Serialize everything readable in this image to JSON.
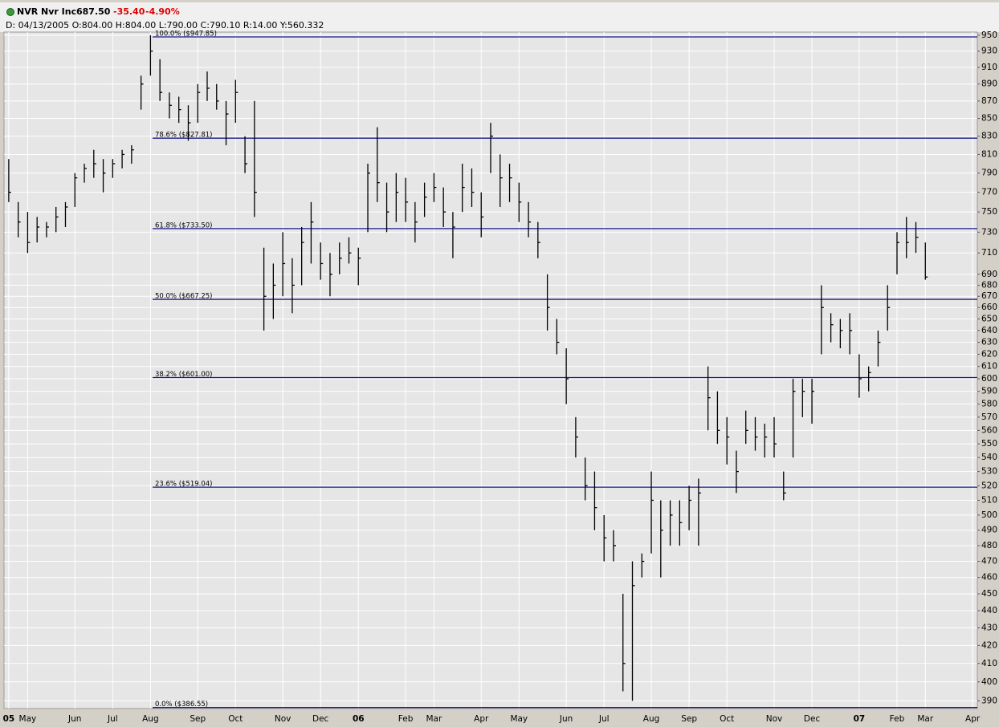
{
  "header": {
    "symbol": "NVR Nvr Inc",
    "last": "687.50",
    "change": "-35.40",
    "change_pct": "-4.90%",
    "info": "D: 04/13/2005 O:804.00 H:804.00 L:790.00 C:790.10 R:14.00 Y:560.332"
  },
  "chart_data": {
    "type": "ohlc",
    "color": "#000000",
    "log_scale": true,
    "grid": true,
    "categories": [
      "05",
      null,
      "May",
      null,
      null,
      null,
      null,
      "Jun",
      null,
      null,
      null,
      "Jul",
      null,
      null,
      null,
      "Aug",
      null,
      null,
      null,
      null,
      "Sep",
      null,
      null,
      null,
      "Oct",
      null,
      null,
      null,
      null,
      "Nov",
      null,
      null,
      null,
      "Dec",
      null,
      null,
      null,
      "06",
      null,
      null,
      null,
      null,
      "Feb",
      null,
      null,
      "Mar",
      null,
      null,
      null,
      null,
      "Apr",
      null,
      null,
      null,
      "May",
      null,
      null,
      null,
      null,
      "Jun",
      null,
      null,
      null,
      "Jul",
      null,
      null,
      null,
      null,
      "Aug",
      null,
      null,
      null,
      "Sep",
      null,
      null,
      null,
      "Oct",
      null,
      null,
      null,
      null,
      "Nov",
      null,
      null,
      null,
      "Dec",
      null,
      null,
      null,
      null,
      "07",
      null,
      null,
      null,
      "Feb",
      null,
      null,
      "Mar",
      null,
      null,
      null,
      null,
      "Apr"
    ],
    "high": [
      805,
      760,
      750,
      745,
      740,
      755,
      760,
      790,
      800,
      815,
      805,
      805,
      815,
      820,
      900,
      950,
      920,
      880,
      875,
      865,
      890,
      905,
      890,
      870,
      895,
      830,
      870,
      715,
      700,
      730,
      705,
      735,
      760,
      720,
      710,
      720,
      725,
      715,
      800,
      840,
      780,
      790,
      785,
      760,
      780,
      790,
      775,
      750,
      800,
      795,
      770,
      845,
      810,
      800,
      780,
      760,
      740,
      690,
      650,
      625,
      570,
      540,
      530,
      500,
      490,
      450,
      470,
      475,
      530,
      510,
      510,
      510,
      520,
      525,
      610,
      590,
      570,
      545,
      575,
      570,
      565,
      570,
      530,
      600,
      600,
      600,
      680,
      655,
      650,
      655,
      620,
      610,
      640,
      680,
      730,
      745,
      740,
      720,
      null,
      null,
      null,
      null,
      null
    ],
    "low": [
      760,
      725,
      710,
      720,
      725,
      730,
      735,
      755,
      780,
      785,
      770,
      785,
      795,
      800,
      860,
      900,
      870,
      850,
      845,
      825,
      845,
      870,
      860,
      820,
      845,
      790,
      745,
      640,
      650,
      670,
      655,
      680,
      700,
      685,
      670,
      690,
      700,
      680,
      730,
      760,
      730,
      740,
      740,
      720,
      745,
      760,
      735,
      705,
      750,
      755,
      725,
      790,
      755,
      760,
      740,
      725,
      705,
      640,
      620,
      580,
      540,
      510,
      490,
      470,
      470,
      395,
      390,
      460,
      475,
      460,
      480,
      480,
      490,
      480,
      560,
      550,
      535,
      515,
      550,
      545,
      540,
      540,
      510,
      540,
      570,
      565,
      620,
      630,
      625,
      620,
      585,
      590,
      610,
      640,
      690,
      705,
      710,
      685,
      null,
      null,
      null,
      null,
      null
    ],
    "close": [
      770,
      740,
      720,
      735,
      735,
      745,
      755,
      785,
      795,
      800,
      790,
      800,
      810,
      815,
      890,
      930,
      880,
      865,
      860,
      845,
      880,
      885,
      870,
      855,
      880,
      800,
      770,
      670,
      680,
      700,
      680,
      720,
      740,
      700,
      690,
      705,
      710,
      705,
      790,
      780,
      750,
      770,
      760,
      740,
      765,
      775,
      750,
      735,
      775,
      770,
      745,
      830,
      785,
      785,
      760,
      740,
      720,
      660,
      630,
      600,
      555,
      520,
      505,
      485,
      480,
      410,
      455,
      470,
      510,
      490,
      500,
      495,
      510,
      515,
      585,
      560,
      555,
      530,
      560,
      555,
      555,
      550,
      515,
      590,
      590,
      590,
      660,
      645,
      640,
      640,
      600,
      605,
      630,
      660,
      720,
      720,
      725,
      687.5,
      null,
      null,
      null,
      null,
      null
    ],
    "ylim": [
      386,
      954
    ],
    "yticks": [
      950,
      930,
      910,
      890,
      870,
      850,
      830,
      810,
      790,
      770,
      750,
      730,
      710,
      690,
      680,
      670,
      660,
      650,
      640,
      630,
      620,
      610,
      600,
      590,
      580,
      570,
      560,
      550,
      540,
      530,
      520,
      510,
      500,
      490,
      480,
      470,
      460,
      450,
      440,
      430,
      420,
      410,
      400,
      390
    ],
    "levels_color": "#1a1a8c",
    "levels": [
      {
        "value": 947.85,
        "label": "100.0% ($947.85)"
      },
      {
        "value": 827.81,
        "label": "78.6% ($827.81)"
      },
      {
        "value": 733.5,
        "label": "61.8% ($733.50)"
      },
      {
        "value": 667.25,
        "label": "50.0% ($667.25)"
      },
      {
        "value": 601.0,
        "label": "38.2% ($601.00)"
      },
      {
        "value": 519.04,
        "label": "23.6% ($519.04)"
      },
      {
        "value": 386.55,
        "label": "0.0% ($386.55)"
      }
    ]
  }
}
